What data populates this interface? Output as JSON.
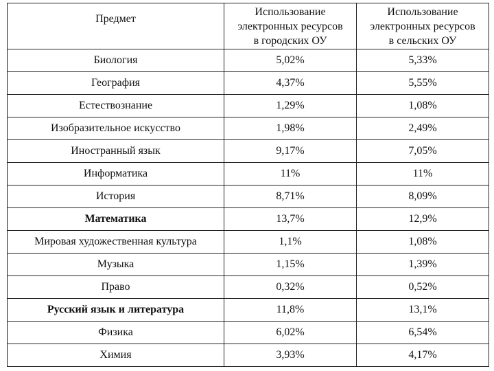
{
  "header": {
    "subject": "Предмет",
    "urban": [
      "Использование",
      "электронных ресурсов",
      "в городских ОУ"
    ],
    "rural": [
      "Использование",
      "электронных ресурсов",
      "в сельских ОУ"
    ]
  },
  "rows": [
    {
      "subject": "Биология",
      "urban": "5,02%",
      "rural": "5,33%",
      "bold": false
    },
    {
      "subject": "География",
      "urban": "4,37%",
      "rural": "5,55%",
      "bold": false
    },
    {
      "subject": "Естествознание",
      "urban": "1,29%",
      "rural": "1,08%",
      "bold": false
    },
    {
      "subject": "Изобразительное искусство",
      "urban": "1,98%",
      "rural": "2,49%",
      "bold": false
    },
    {
      "subject": "Иностранный язык",
      "urban": "9,17%",
      "rural": "7,05%",
      "bold": false
    },
    {
      "subject": "Информатика",
      "urban": "11%",
      "rural": "11%",
      "bold": false
    },
    {
      "subject": "История",
      "urban": "8,71%",
      "rural": "8,09%",
      "bold": false
    },
    {
      "subject": "Математика",
      "urban": "13,7%",
      "rural": "12,9%",
      "bold": true
    },
    {
      "subject": "Мировая художественная культура",
      "urban": "1,1%",
      "rural": "1,08%",
      "bold": false
    },
    {
      "subject": "Музыка",
      "urban": "1,15%",
      "rural": "1,39%",
      "bold": false
    },
    {
      "subject": "Право",
      "urban": "0,32%",
      "rural": "0,52%",
      "bold": false
    },
    {
      "subject": "Русский язык и литература",
      "urban": "11,8%",
      "rural": "13,1%",
      "bold": true
    },
    {
      "subject": "Физика",
      "urban": "6,02%",
      "rural": "6,54%",
      "bold": false
    },
    {
      "subject": "Химия",
      "urban": "3,93%",
      "rural": "4,17%",
      "bold": false
    }
  ]
}
